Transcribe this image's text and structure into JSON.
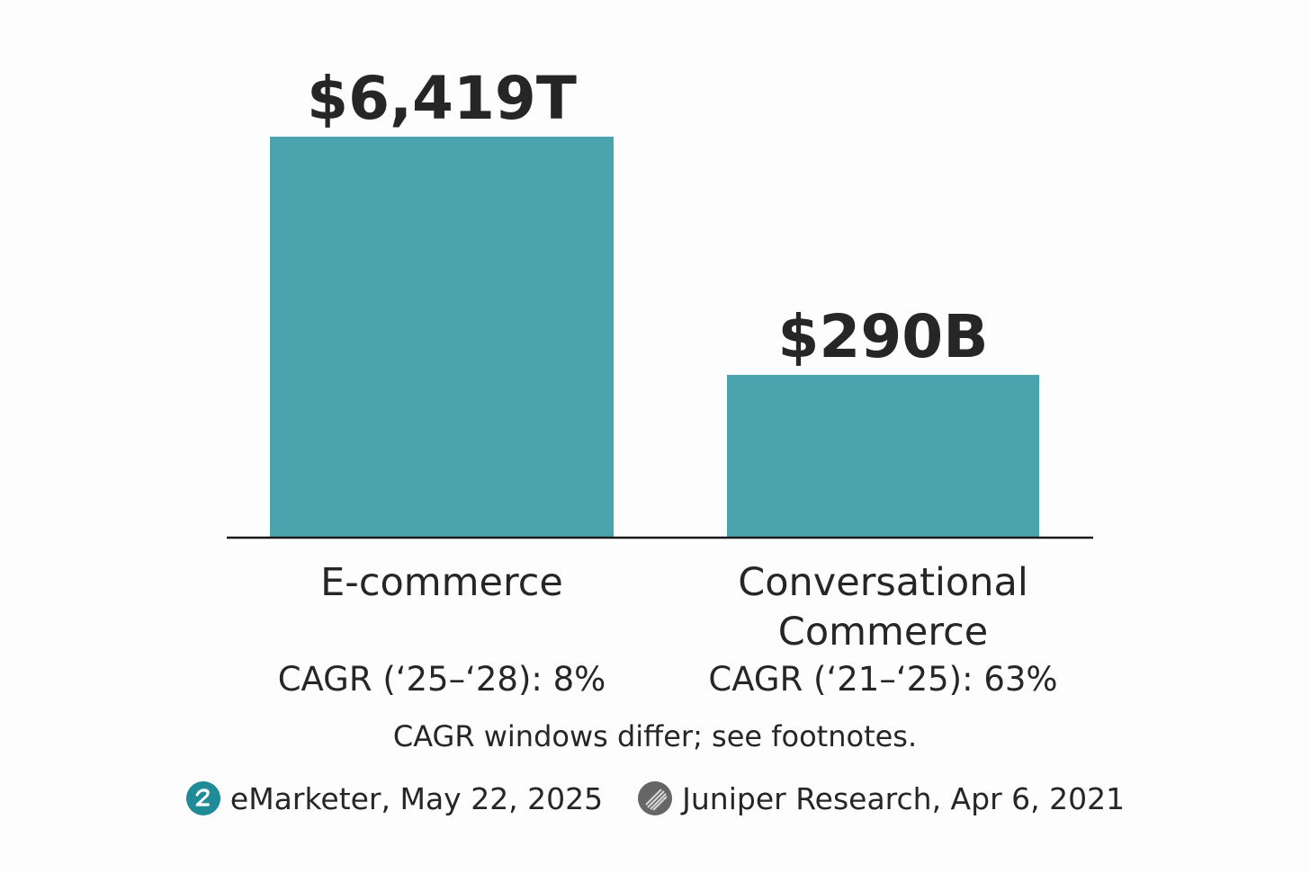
{
  "chart_data": {
    "type": "bar",
    "categories": [
      [
        "E-commerce"
      ],
      [
        "Conversational",
        "Commerce"
      ]
    ],
    "values": [
      6419,
      290
    ],
    "value_labels": [
      "$6,419T",
      "$290B"
    ],
    "cagr_labels": [
      "CAGR (‘25–‘28): 8%",
      "CAGR (‘21–‘25): 63%"
    ],
    "bar_color": "#4ba4ad",
    "axis_color": "#1a1a1a",
    "grid": false,
    "legend": "none"
  },
  "footnote": "CAGR windows differ; see footnotes.",
  "sources": [
    {
      "icon": "teal-circle-icon",
      "color": "#1f8b96",
      "text": "eMarketer, May 22, 2025"
    },
    {
      "icon": "gray-striped-circle-icon",
      "color": "#666666",
      "text": "Juniper Research, Apr 6, 2021"
    }
  ]
}
